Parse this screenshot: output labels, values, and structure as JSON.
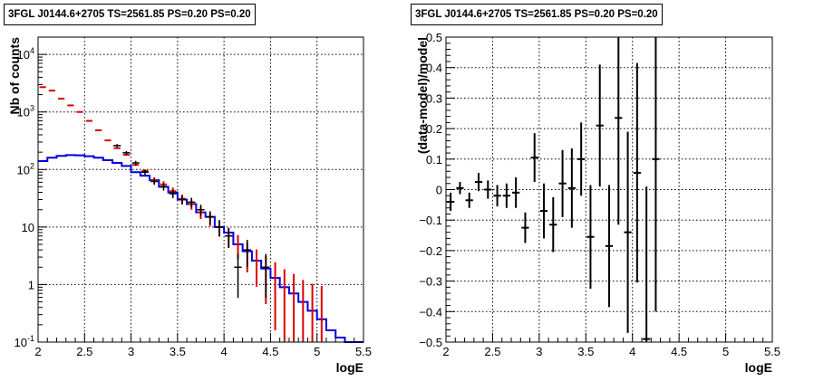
{
  "chart_data": [
    {
      "type": "line",
      "title": "3FGL J0144.6+2705 TS=2561.85 PS=0.20 PS=0.20",
      "xlabel": "logE",
      "ylabel": "Nb of counts",
      "xlim": [
        2,
        5.5
      ],
      "ylim": [
        0.1,
        20000
      ],
      "yscale": "log",
      "grid": true,
      "x_ticks": [
        "2",
        "2.5",
        "3",
        "3.5",
        "4",
        "4.5",
        "5",
        "5.5"
      ],
      "y_ticks": [
        "10^{-1}",
        "1",
        "10",
        "10^{2}",
        "10^{3}",
        "10^{4}"
      ],
      "bin_width": 0.1,
      "series": [
        {
          "style": "black points with error bars",
          "color": "#000000",
          "x": [
            2.8,
            2.9,
            3.0,
            3.1,
            3.2,
            3.3,
            3.4,
            3.5,
            3.6,
            3.7,
            3.8,
            3.9,
            4.0,
            4.1,
            4.2,
            4.4
          ],
          "y": [
            260,
            195,
            130,
            90,
            62,
            50,
            38,
            30,
            27,
            20,
            15,
            10,
            7,
            2,
            4,
            2
          ]
        },
        {
          "style": "red model with error bars",
          "color": "#dd0000",
          "x": [
            2.0,
            2.1,
            2.2,
            2.3,
            2.4,
            2.5,
            2.6,
            2.7,
            2.8,
            2.9,
            3.0,
            3.1,
            3.2,
            3.3,
            3.4,
            3.5,
            3.6,
            3.7,
            3.8,
            3.9,
            4.0,
            4.1,
            4.2,
            4.3,
            4.4,
            4.5,
            4.6,
            4.7,
            4.8,
            4.9,
            5.0
          ],
          "y": [
            2700,
            2350,
            1700,
            1300,
            1000,
            700,
            480,
            320,
            235,
            180,
            120,
            95,
            65,
            55,
            42,
            31,
            25,
            18,
            14,
            10,
            7,
            5,
            3.5,
            2.5,
            1.8,
            1.3,
            0.9,
            0.7,
            0.5,
            0.4,
            0.35
          ]
        },
        {
          "style": "blue step histogram",
          "color": "#0000dd",
          "x": [
            2.0,
            2.1,
            2.2,
            2.3,
            2.4,
            2.5,
            2.6,
            2.7,
            2.8,
            2.9,
            3.0,
            3.1,
            3.2,
            3.3,
            3.4,
            3.5,
            3.6,
            3.7,
            3.8,
            3.9,
            4.0,
            4.1,
            4.2,
            4.3,
            4.4,
            4.5,
            4.6,
            4.7,
            4.8,
            4.9,
            5.0,
            5.1,
            5.2,
            5.3,
            5.4
          ],
          "y": [
            140,
            160,
            172,
            178,
            176,
            170,
            160,
            145,
            130,
            115,
            90,
            78,
            65,
            50,
            40,
            30,
            25,
            18,
            15,
            10,
            8,
            5,
            3.8,
            2.6,
            1.9,
            1.3,
            0.9,
            0.7,
            0.5,
            0.35,
            0.25,
            0.16,
            0.12,
            0.1,
            0.1
          ]
        }
      ]
    },
    {
      "type": "scatter",
      "title": "3FGL J0144.6+2705 TS=2561.85 PS=0.20 PS=0.20",
      "xlabel": "logE",
      "ylabel": "(data-model)/model",
      "xlim": [
        2,
        5.5
      ],
      "ylim": [
        -0.5,
        0.5
      ],
      "grid": true,
      "x_ticks": [
        "2",
        "2.5",
        "3",
        "3.5",
        "4",
        "4.5",
        "5",
        "5.5"
      ],
      "y_ticks": [
        "−0.5",
        "−0.4",
        "−0.3",
        "−0.2",
        "−0.1",
        "0",
        "0.1",
        "0.2",
        "0.3",
        "0.4",
        "0.5"
      ],
      "bin_width": 0.1,
      "series": [
        {
          "style": "black points with error bars",
          "color": "#000000",
          "x": [
            2.05,
            2.15,
            2.25,
            2.35,
            2.45,
            2.55,
            2.65,
            2.75,
            2.85,
            2.95,
            3.05,
            3.15,
            3.25,
            3.35,
            3.45,
            3.55,
            3.65,
            3.75,
            3.85,
            3.95,
            4.05,
            4.15,
            4.25
          ],
          "y": [
            -0.04,
            0.005,
            -0.035,
            0.025,
            0.0,
            -0.02,
            -0.02,
            -0.01,
            -0.125,
            0.105,
            -0.07,
            -0.115,
            0.02,
            0.005,
            0.1,
            -0.155,
            0.21,
            -0.185,
            0.235,
            -0.14,
            0.055,
            -0.49,
            0.1
          ],
          "err": [
            0.03,
            0.02,
            0.025,
            0.03,
            0.03,
            0.035,
            0.04,
            0.05,
            0.05,
            0.08,
            0.09,
            0.09,
            0.11,
            0.13,
            0.12,
            0.17,
            0.2,
            0.2,
            0.35,
            0.33,
            0.36,
            0.5,
            0.5
          ]
        }
      ]
    }
  ]
}
